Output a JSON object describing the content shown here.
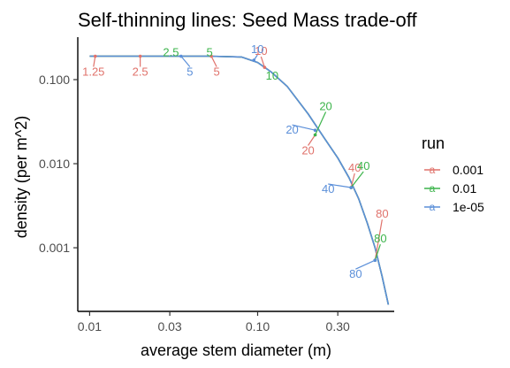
{
  "chart_data": {
    "type": "line",
    "title": "Self-thinning lines: Seed Mass trade-off",
    "xlabel": "average stem diameter (m)",
    "ylabel": "density (per m^2)",
    "x_scale": "log10",
    "y_scale": "log10",
    "xlim": [
      0.0085,
      0.65
    ],
    "ylim": [
      0.000175,
      0.32
    ],
    "x_ticks": [
      {
        "value": 0.01,
        "label": "0.01"
      },
      {
        "value": 0.03,
        "label": "0.03"
      },
      {
        "value": 0.1,
        "label": "0.10"
      },
      {
        "value": 0.3,
        "label": "0.30"
      }
    ],
    "y_ticks": [
      {
        "value": 0.1,
        "label": "0.100"
      },
      {
        "value": 0.01,
        "label": "0.010"
      },
      {
        "value": 0.001,
        "label": "0.001"
      }
    ],
    "legend": {
      "title": "run",
      "position": "right",
      "key_glyph": "a"
    },
    "series": [
      {
        "name": "0.001",
        "color": "#E0726B",
        "curve": [
          [
            0.01,
            0.19
          ],
          [
            0.05,
            0.19
          ],
          [
            0.08,
            0.186
          ],
          [
            0.1,
            0.16
          ],
          [
            0.12,
            0.124
          ],
          [
            0.15,
            0.083
          ],
          [
            0.2,
            0.039
          ],
          [
            0.25,
            0.02
          ],
          [
            0.3,
            0.0117
          ],
          [
            0.35,
            0.0068
          ],
          [
            0.4,
            0.0038
          ],
          [
            0.45,
            0.00195
          ],
          [
            0.5,
            0.001
          ],
          [
            0.55,
            0.00046
          ],
          [
            0.6,
            0.00021
          ]
        ],
        "labels": [
          {
            "text": "1.25",
            "x": 0.0108,
            "y": 0.19
          },
          {
            "text": "2.5",
            "x": 0.02,
            "y": 0.19
          },
          {
            "text": "5",
            "x": 0.053,
            "y": 0.19
          },
          {
            "text": "10",
            "x": 0.11,
            "y": 0.14
          },
          {
            "text": "20",
            "x": 0.22,
            "y": 0.022
          },
          {
            "text": "40",
            "x": 0.36,
            "y": 0.0052
          },
          {
            "text": "80",
            "x": 0.5,
            "y": 0.00071
          }
        ]
      },
      {
        "name": "0.01",
        "color": "#3CB44B",
        "curve": [
          [
            0.01,
            0.19
          ],
          [
            0.05,
            0.19
          ],
          [
            0.08,
            0.186
          ],
          [
            0.1,
            0.16
          ],
          [
            0.12,
            0.124
          ],
          [
            0.15,
            0.083
          ],
          [
            0.2,
            0.039
          ],
          [
            0.25,
            0.02
          ],
          [
            0.3,
            0.0117
          ],
          [
            0.35,
            0.0068
          ],
          [
            0.4,
            0.0038
          ],
          [
            0.45,
            0.00195
          ],
          [
            0.5,
            0.001
          ],
          [
            0.55,
            0.00046
          ],
          [
            0.6,
            0.00021
          ]
        ],
        "labels": [
          {
            "text": "2.5",
            "x": 0.032,
            "y": 0.19
          },
          {
            "text": "5",
            "x": 0.053,
            "y": 0.19
          },
          {
            "text": "10",
            "x": 0.125,
            "y": 0.1
          },
          {
            "text": "20",
            "x": 0.22,
            "y": 0.022
          },
          {
            "text": "40",
            "x": 0.36,
            "y": 0.0052
          },
          {
            "text": "80",
            "x": 0.5,
            "y": 0.00071
          }
        ]
      },
      {
        "name": "1e-05",
        "color": "#5B8FD9",
        "curve": [
          [
            0.01,
            0.19
          ],
          [
            0.05,
            0.19
          ],
          [
            0.08,
            0.186
          ],
          [
            0.1,
            0.16
          ],
          [
            0.12,
            0.124
          ],
          [
            0.15,
            0.083
          ],
          [
            0.2,
            0.039
          ],
          [
            0.25,
            0.02
          ],
          [
            0.3,
            0.0117
          ],
          [
            0.35,
            0.0068
          ],
          [
            0.4,
            0.0038
          ],
          [
            0.45,
            0.00195
          ],
          [
            0.5,
            0.001
          ],
          [
            0.55,
            0.00046
          ],
          [
            0.6,
            0.00021
          ]
        ],
        "labels": [
          {
            "text": "5",
            "x": 0.035,
            "y": 0.19
          },
          {
            "text": "10",
            "x": 0.095,
            "y": 0.17
          },
          {
            "text": "20",
            "x": 0.22,
            "y": 0.025
          },
          {
            "text": "40",
            "x": 0.36,
            "y": 0.0052
          },
          {
            "text": "80",
            "x": 0.5,
            "y": 0.00071
          }
        ]
      }
    ]
  }
}
